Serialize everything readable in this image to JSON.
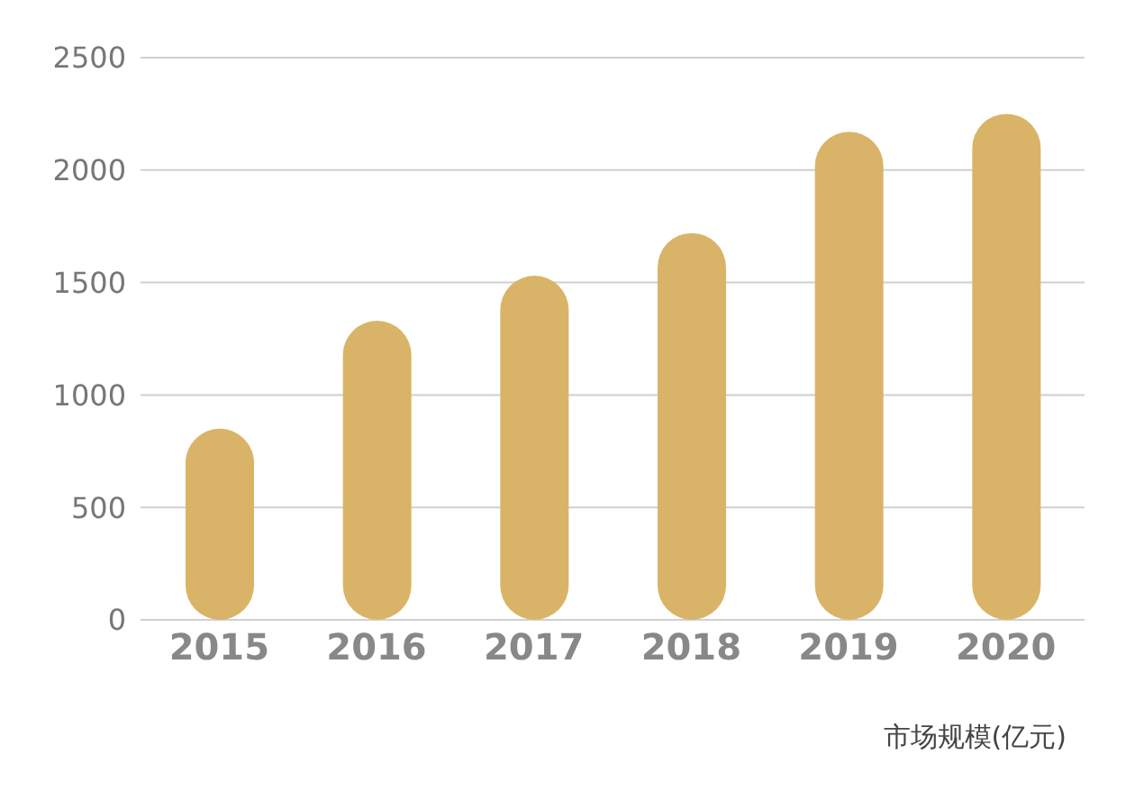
{
  "chart_data": {
    "type": "bar",
    "categories": [
      "2015",
      "2016",
      "2017",
      "2018",
      "2019",
      "2020"
    ],
    "values": [
      850,
      1330,
      1530,
      1720,
      2170,
      2250
    ],
    "color": "#d9b468",
    "ylim": [
      0,
      2500
    ],
    "yticks": [
      0,
      500,
      1000,
      1500,
      2000,
      2500
    ],
    "grid": "y",
    "annotations": [
      "市场规模(亿元)"
    ]
  }
}
